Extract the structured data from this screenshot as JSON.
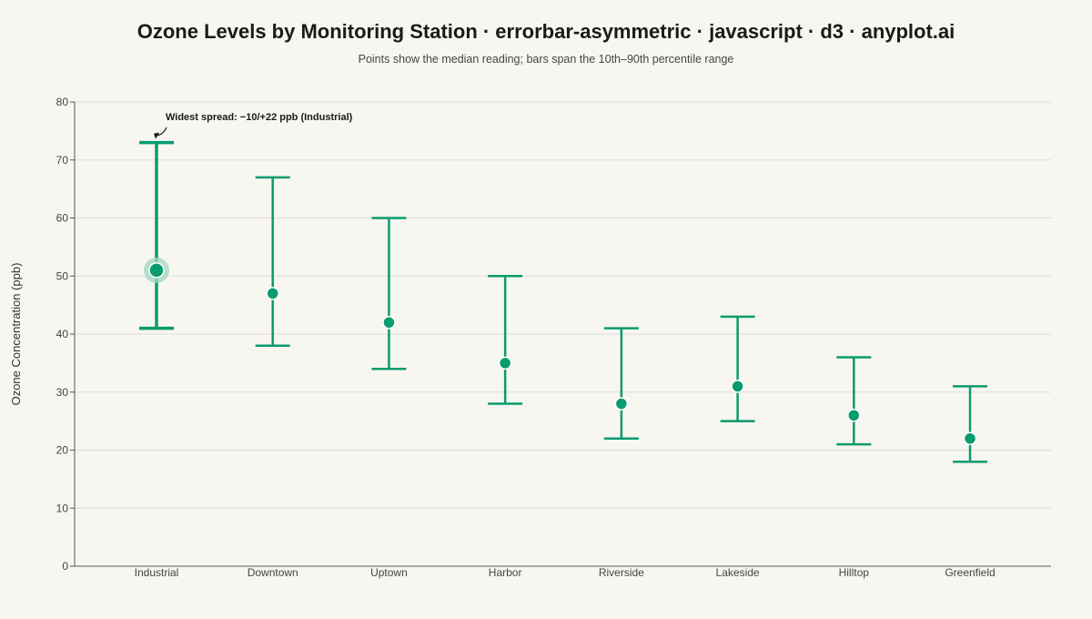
{
  "chart_data": {
    "type": "scatter",
    "title": "Ozone Levels by Monitoring Station · errorbar-asymmetric · javascript · d3 · anyplot.ai",
    "subtitle": "Points show the median reading; bars span the 10th–90th percentile range",
    "xlabel": "",
    "ylabel": "Ozone Concentration (ppb)",
    "ylim": [
      0,
      80
    ],
    "yticks": [
      0,
      10,
      20,
      30,
      40,
      50,
      60,
      70,
      80
    ],
    "grid": true,
    "categories": [
      "Industrial",
      "Downtown",
      "Uptown",
      "Harbor",
      "Riverside",
      "Lakeside",
      "Hilltop",
      "Greenfield"
    ],
    "series": [
      {
        "median": [
          51,
          47,
          42,
          35,
          28,
          31,
          26,
          22
        ],
        "lower": [
          41,
          38,
          34,
          28,
          22,
          25,
          21,
          18
        ],
        "upper": [
          73,
          67,
          60,
          50,
          41,
          43,
          36,
          31
        ]
      }
    ],
    "annotation": {
      "text": "Widest spread: −10/+22 ppb (Industrial)",
      "category": "Industrial"
    },
    "colors": {
      "series": "#0a9b6f",
      "highlight_halo": "#9ed8c1",
      "axis": "#555555",
      "grid": "#dcdcdc",
      "background": "#f8f6f0"
    }
  }
}
